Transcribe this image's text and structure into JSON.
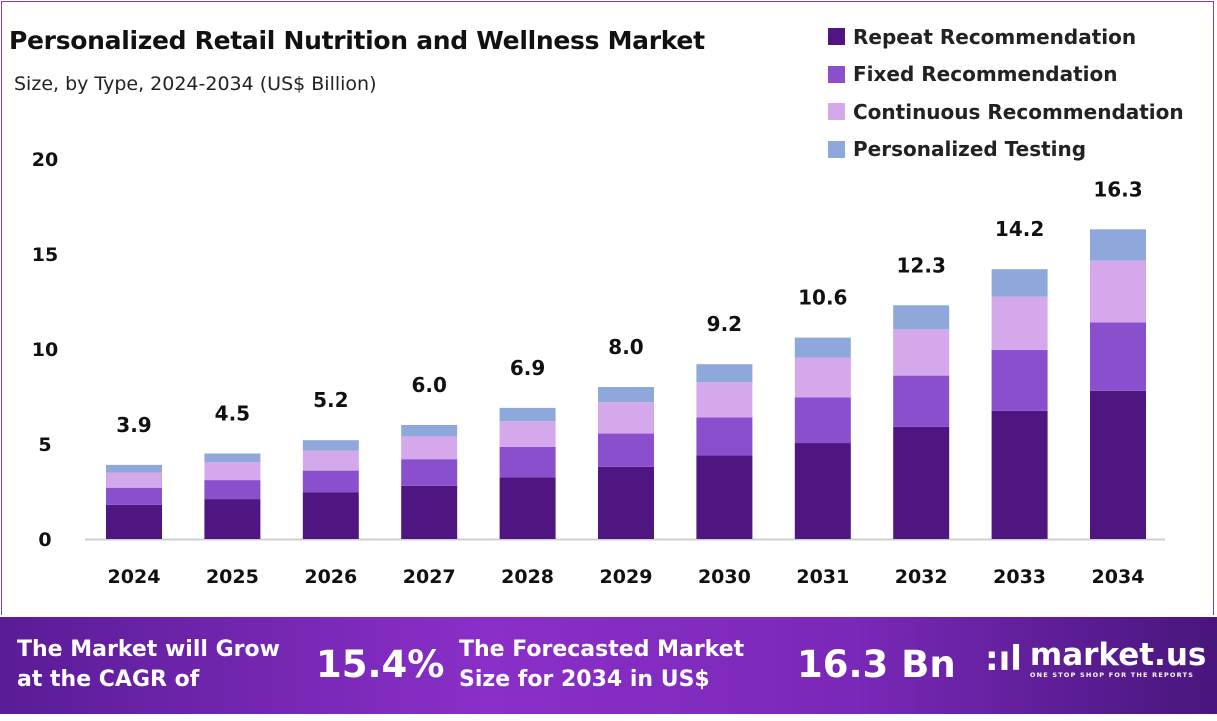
{
  "chart_data": {
    "type": "bar",
    "stacked": true,
    "title": "Personalized Retail Nutrition and Wellness Market",
    "subtitle": "Size, by Type, 2024-2034 (US$ Billion)",
    "categories": [
      "2024",
      "2025",
      "2026",
      "2027",
      "2028",
      "2029",
      "2030",
      "2031",
      "2032",
      "2033",
      "2034"
    ],
    "series": [
      {
        "name": "Repeat Recommendation",
        "color": "#4f1682",
        "values": [
          1.8,
          2.1,
          2.45,
          2.8,
          3.25,
          3.8,
          4.4,
          5.05,
          5.9,
          6.75,
          7.8
        ]
      },
      {
        "name": "Fixed Recommendation",
        "color": "#8a4fcc",
        "values": [
          0.9,
          1.0,
          1.15,
          1.4,
          1.6,
          1.75,
          2.0,
          2.4,
          2.7,
          3.2,
          3.6
        ]
      },
      {
        "name": "Continuous Recommendation",
        "color": "#d4a8ea",
        "values": [
          0.8,
          0.95,
          1.05,
          1.2,
          1.35,
          1.65,
          1.85,
          2.1,
          2.45,
          2.8,
          3.25
        ]
      },
      {
        "name": "Personalized Testing",
        "color": "#8fa8dc",
        "values": [
          0.4,
          0.45,
          0.55,
          0.6,
          0.7,
          0.8,
          0.95,
          1.05,
          1.25,
          1.45,
          1.65
        ]
      }
    ],
    "totals": [
      "3.9",
      "4.5",
      "5.2",
      "6.0",
      "6.9",
      "8.0",
      "9.2",
      "10.6",
      "12.3",
      "14.2",
      "16.3"
    ],
    "yticks": [
      "0",
      "5",
      "10",
      "15",
      "20"
    ],
    "ylim": [
      0,
      20
    ],
    "grid": false,
    "legend_position": "top-right"
  },
  "footer": {
    "cagr_text_1": "The Market will Grow",
    "cagr_text_2": "at the CAGR of",
    "cagr_value": "15.4%",
    "forecast_text_1": "The Forecasted Market",
    "forecast_text_2": "Size for 2034 in US$",
    "forecast_value": "16.3 Bn",
    "logo_name": "market.us",
    "logo_tagline": "ONE STOP SHOP FOR THE REPORTS"
  }
}
